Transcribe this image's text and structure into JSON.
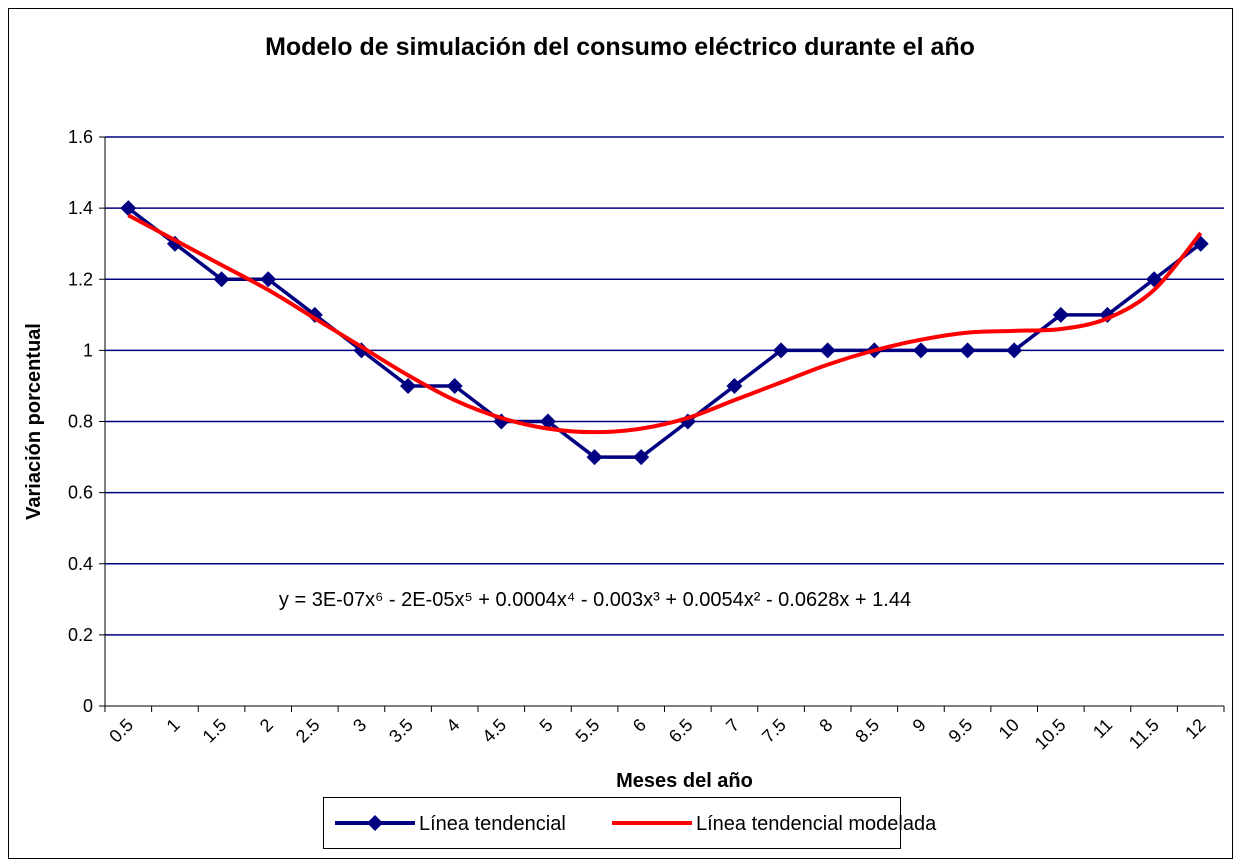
{
  "chart_data": {
    "type": "line",
    "title": "Modelo de simulación del consumo eléctrico durante el año",
    "xlabel": "Meses del año",
    "ylabel": "Variación porcentual",
    "annotation": "y = 3E-07x⁶ - 2E-05x⁵ + 0.0004x⁴ - 0.003x³ + 0.0054x² - 0.0628x + 1.44",
    "categories": [
      "0.5",
      "1",
      "1.5",
      "2",
      "2.5",
      "3",
      "3.5",
      "4",
      "4.5",
      "5",
      "5.5",
      "6",
      "6.5",
      "7",
      "7.5",
      "8",
      "8.5",
      "9",
      "9.5",
      "10",
      "10.5",
      "11",
      "11.5",
      "12"
    ],
    "series": [
      {
        "name": "Línea tendencial",
        "color": "#000080",
        "marker": "diamond",
        "values": [
          1.4,
          1.3,
          1.2,
          1.2,
          1.1,
          1.0,
          0.9,
          0.9,
          0.8,
          0.8,
          0.7,
          0.7,
          0.8,
          0.9,
          1.0,
          1.0,
          1.0,
          1.0,
          1.0,
          1.0,
          1.1,
          1.1,
          1.2,
          1.3
        ]
      },
      {
        "name": "Línea tendencial modelada",
        "color": "#ff0000",
        "marker": "none",
        "values": [
          1.38,
          1.31,
          1.24,
          1.17,
          1.09,
          1.01,
          0.93,
          0.86,
          0.81,
          0.78,
          0.77,
          0.78,
          0.81,
          0.86,
          0.91,
          0.96,
          1.0,
          1.03,
          1.05,
          1.055,
          1.06,
          1.09,
          1.17,
          1.33
        ]
      }
    ],
    "ylim": [
      0,
      1.6
    ],
    "yticks": [
      0,
      0.2,
      0.4,
      0.6,
      0.8,
      1,
      1.2,
      1.4,
      1.6
    ],
    "grid": true,
    "legend": "bottom"
  }
}
